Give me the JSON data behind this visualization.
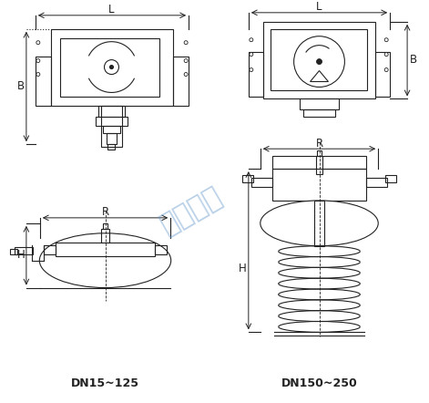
{
  "background": "#ffffff",
  "line_color": "#222222",
  "dim_color": "#222222",
  "watermark_color": "#6699cc",
  "watermark_text": "仪欣阀门",
  "watermark_alpha": 0.45,
  "label_dn15": "DN15~125",
  "label_dn150": "DN150~250",
  "label_L": "L",
  "label_B": "B",
  "label_R": "R",
  "label_H": "H",
  "title_fontsize": 9,
  "dim_fontsize": 8.5
}
